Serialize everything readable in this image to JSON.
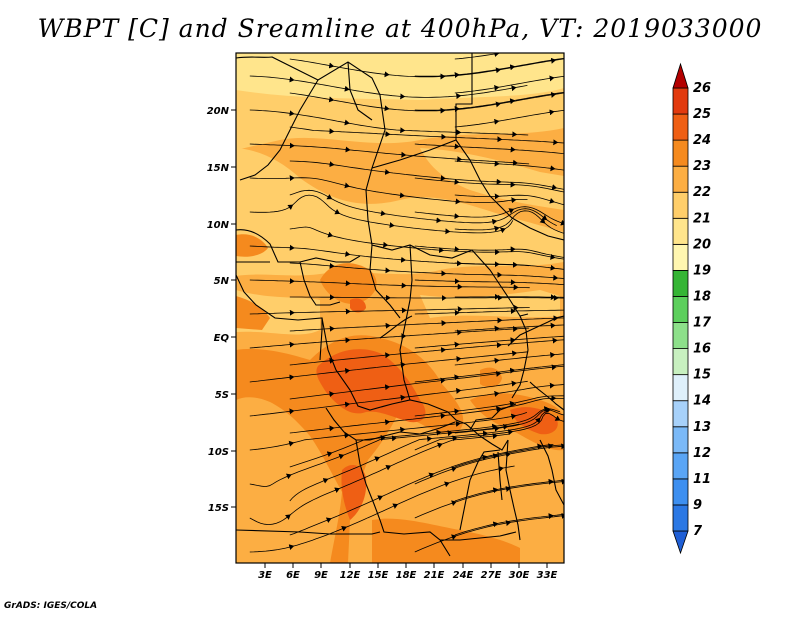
{
  "title": "WBPT [C] and Sreamline at 400hPa, VT: 2019033000",
  "credit": "GrADS: IGES/COLA",
  "map": {
    "lon_ticks": [
      "3E",
      "6E",
      "9E",
      "12E",
      "15E",
      "18E",
      "21E",
      "24E",
      "27E",
      "30E",
      "33E"
    ],
    "lat_ticks": [
      "20N",
      "15N",
      "10N",
      "5N",
      "EQ",
      "5S",
      "10S",
      "15S"
    ]
  },
  "colorbar": {
    "levels": [
      "7",
      "9",
      "11",
      "12",
      "13",
      "14",
      "15",
      "16",
      "17",
      "18",
      "19",
      "20",
      "21",
      "22",
      "23",
      "24",
      "25",
      "26"
    ],
    "colors": [
      "#1f5fd6",
      "#2b78e4",
      "#3d8ff0",
      "#5aa5f5",
      "#7bb9f7",
      "#a7d1fa",
      "#dff0fb",
      "#c8f0c0",
      "#8de08a",
      "#5ccf5c",
      "#35b535",
      "#fff6b0",
      "#ffe58c",
      "#ffce6a",
      "#fcae43",
      "#f58a1e",
      "#ef5f14",
      "#e23a0e",
      "#d01c08",
      "#b30000"
    ]
  },
  "field_colors": {
    "c19": "#ffe58c",
    "c20": "#ffce6a",
    "c21": "#fcae43",
    "c22": "#f58a1e",
    "c23": "#ef5f14"
  }
}
